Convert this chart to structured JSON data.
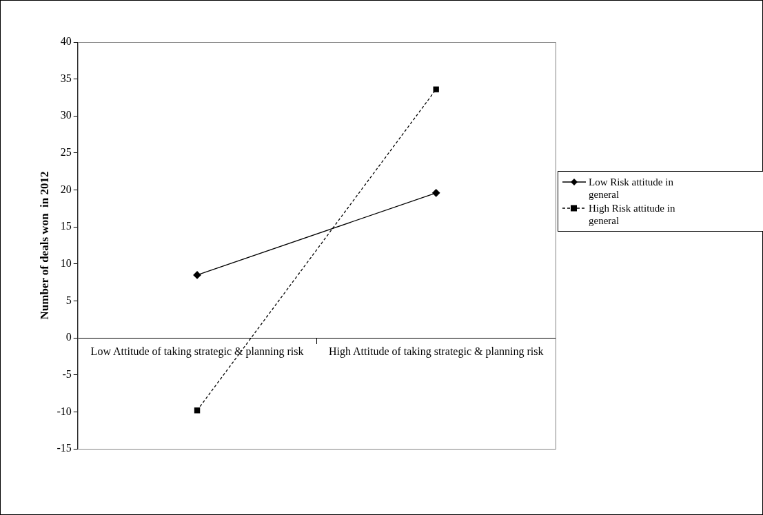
{
  "chart_data": {
    "type": "line",
    "ylabel": "Number of deals won  in 2012",
    "categories": [
      "Low Attitude of taking strategic & planning risk",
      "High Attitude of taking strategic & planning risk"
    ],
    "series": [
      {
        "name": "Low Risk attitude in general",
        "color": "#000000",
        "values": [
          8.5,
          19.6
        ],
        "marker": "diamond",
        "line_style": "solid"
      },
      {
        "name": "High Risk attitude in general",
        "color": "#000000",
        "values": [
          -9.8,
          33.6
        ],
        "marker": "square",
        "line_style": "dashed"
      }
    ],
    "ylim": [
      -15,
      40
    ],
    "yticks": [
      -15,
      -10,
      -5,
      0,
      5,
      10,
      15,
      20,
      25,
      30,
      35,
      40
    ],
    "grid": false,
    "legend": "right"
  }
}
